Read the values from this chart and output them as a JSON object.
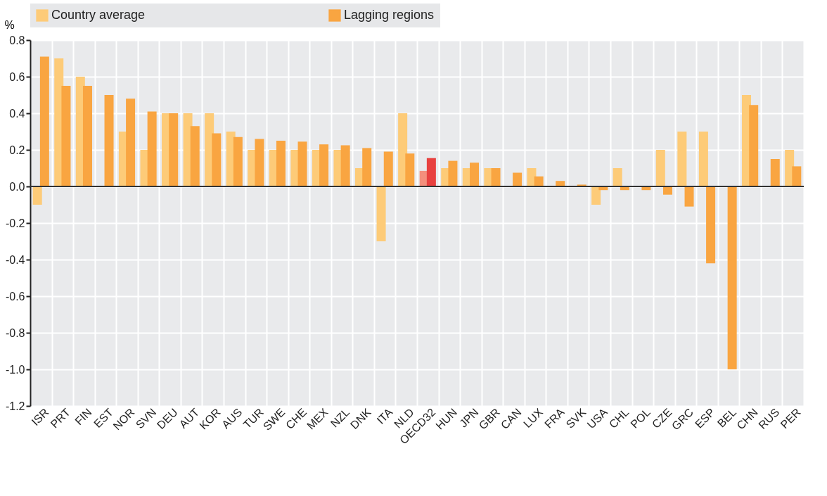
{
  "chart_data": {
    "type": "bar",
    "ylabel": "%",
    "legend": "top",
    "grid": true,
    "categories": [
      "ISR",
      "PRT",
      "FIN",
      "EST",
      "NOR",
      "SVN",
      "DEU",
      "AUT",
      "KOR",
      "AUS",
      "TUR",
      "SWE",
      "CHE",
      "MEX",
      "NZL",
      "DNK",
      "ITA",
      "NLD",
      "OECD32",
      "HUN",
      "JPN",
      "GBR",
      "CAN",
      "LUX",
      "FRA",
      "SVK",
      "USA",
      "CHL",
      "POL",
      "CZE",
      "GRC",
      "ESP",
      "BEL",
      "CHN",
      "RUS",
      "PER"
    ],
    "series": [
      {
        "name": "Country average",
        "color": "#fdcb78",
        "colors": [
          "#fdcb78",
          "#fdcb78",
          "#fdcb78",
          "#fdcb78",
          "#fdcb78",
          "#fdcb78",
          "#fdcb78",
          "#fdcb78",
          "#fdcb78",
          "#fdcb78",
          "#fdcb78",
          "#fdcb78",
          "#fdcb78",
          "#fdcb78",
          "#fdcb78",
          "#fdcb78",
          "#fdcb78",
          "#fdcb78",
          "#f48f7c",
          "#fdcb78",
          "#fdcb78",
          "#fdcb78",
          "#fdcb78",
          "#fdcb78",
          "#fdcb78",
          "#fdcb78",
          "#fdcb78",
          "#fdcb78",
          "#fdcb78",
          "#fdcb78",
          "#fdcb78",
          "#fdcb78",
          "#fdcb78",
          "#fdcb78",
          "#fdcb78",
          "#fdcb78"
        ],
        "values": [
          -0.1,
          0.7,
          0.6,
          null,
          0.3,
          0.2,
          0.4,
          0.4,
          0.4,
          0.3,
          0.2,
          0.2,
          0.2,
          0.2,
          0.2,
          0.1,
          -0.3,
          0.4,
          0.085,
          0.1,
          0.1,
          0.1,
          null,
          0.1,
          null,
          null,
          -0.1,
          0.1,
          null,
          0.2,
          0.3,
          0.3,
          null,
          0.5,
          null,
          0.2
        ]
      },
      {
        "name": "Lagging regions",
        "color": "#f9a541",
        "colors": [
          "#f9a541",
          "#f9a541",
          "#f9a541",
          "#f9a541",
          "#f9a541",
          "#f9a541",
          "#f9a541",
          "#f9a541",
          "#f9a541",
          "#f9a541",
          "#f9a541",
          "#f9a541",
          "#f9a541",
          "#f9a541",
          "#f9a541",
          "#f9a541",
          "#f9a541",
          "#f9a541",
          "#e8413f",
          "#f9a541",
          "#f9a541",
          "#f9a541",
          "#f9a541",
          "#f9a541",
          "#f9a541",
          "#f9a541",
          "#f9a541",
          "#f9a541",
          "#f9a541",
          "#f9a541",
          "#f9a541",
          "#f9a541",
          "#f9a541",
          "#f9a541",
          "#f9a541",
          "#f9a541"
        ],
        "values": [
          0.71,
          0.55,
          0.55,
          0.5,
          0.48,
          0.41,
          0.4,
          0.33,
          0.29,
          0.27,
          0.26,
          0.25,
          0.245,
          0.23,
          0.225,
          0.21,
          0.19,
          0.18,
          0.155,
          0.14,
          0.13,
          0.1,
          0.075,
          0.055,
          0.03,
          0.01,
          -0.02,
          -0.02,
          -0.02,
          -0.045,
          -0.11,
          -0.42,
          -1.0,
          0.445,
          0.15,
          0.11
        ]
      }
    ],
    "ylim": [
      -1.2,
      0.8
    ],
    "yticks": [
      {
        "value": -1.2,
        "label": "-1.2"
      },
      {
        "value": -1.0,
        "label": "-1.0"
      },
      -0.8,
      -0.6,
      -0.4,
      -0.2,
      {
        "value": 0,
        "label": "0.0"
      },
      0.2,
      0.4,
      0.6,
      0.8
    ]
  }
}
